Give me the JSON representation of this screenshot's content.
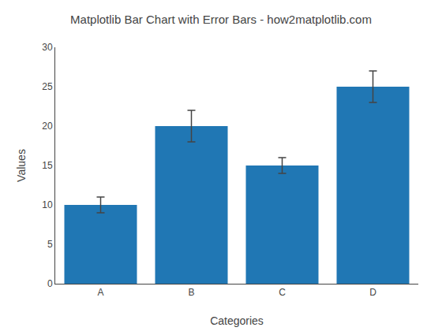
{
  "chart_data": {
    "type": "bar",
    "title": "Matplotlib Bar Chart with Error Bars - how2matplotlib.com",
    "xlabel": "Categories",
    "ylabel": "Values",
    "categories": [
      "A",
      "B",
      "C",
      "D"
    ],
    "values": [
      10,
      20,
      15,
      25
    ],
    "errors": [
      1,
      2,
      1,
      2
    ],
    "color": "#2077b4",
    "ylim": [
      0,
      30
    ],
    "yticks": [
      0,
      5,
      10,
      15,
      20,
      25,
      30
    ],
    "grid": false
  }
}
